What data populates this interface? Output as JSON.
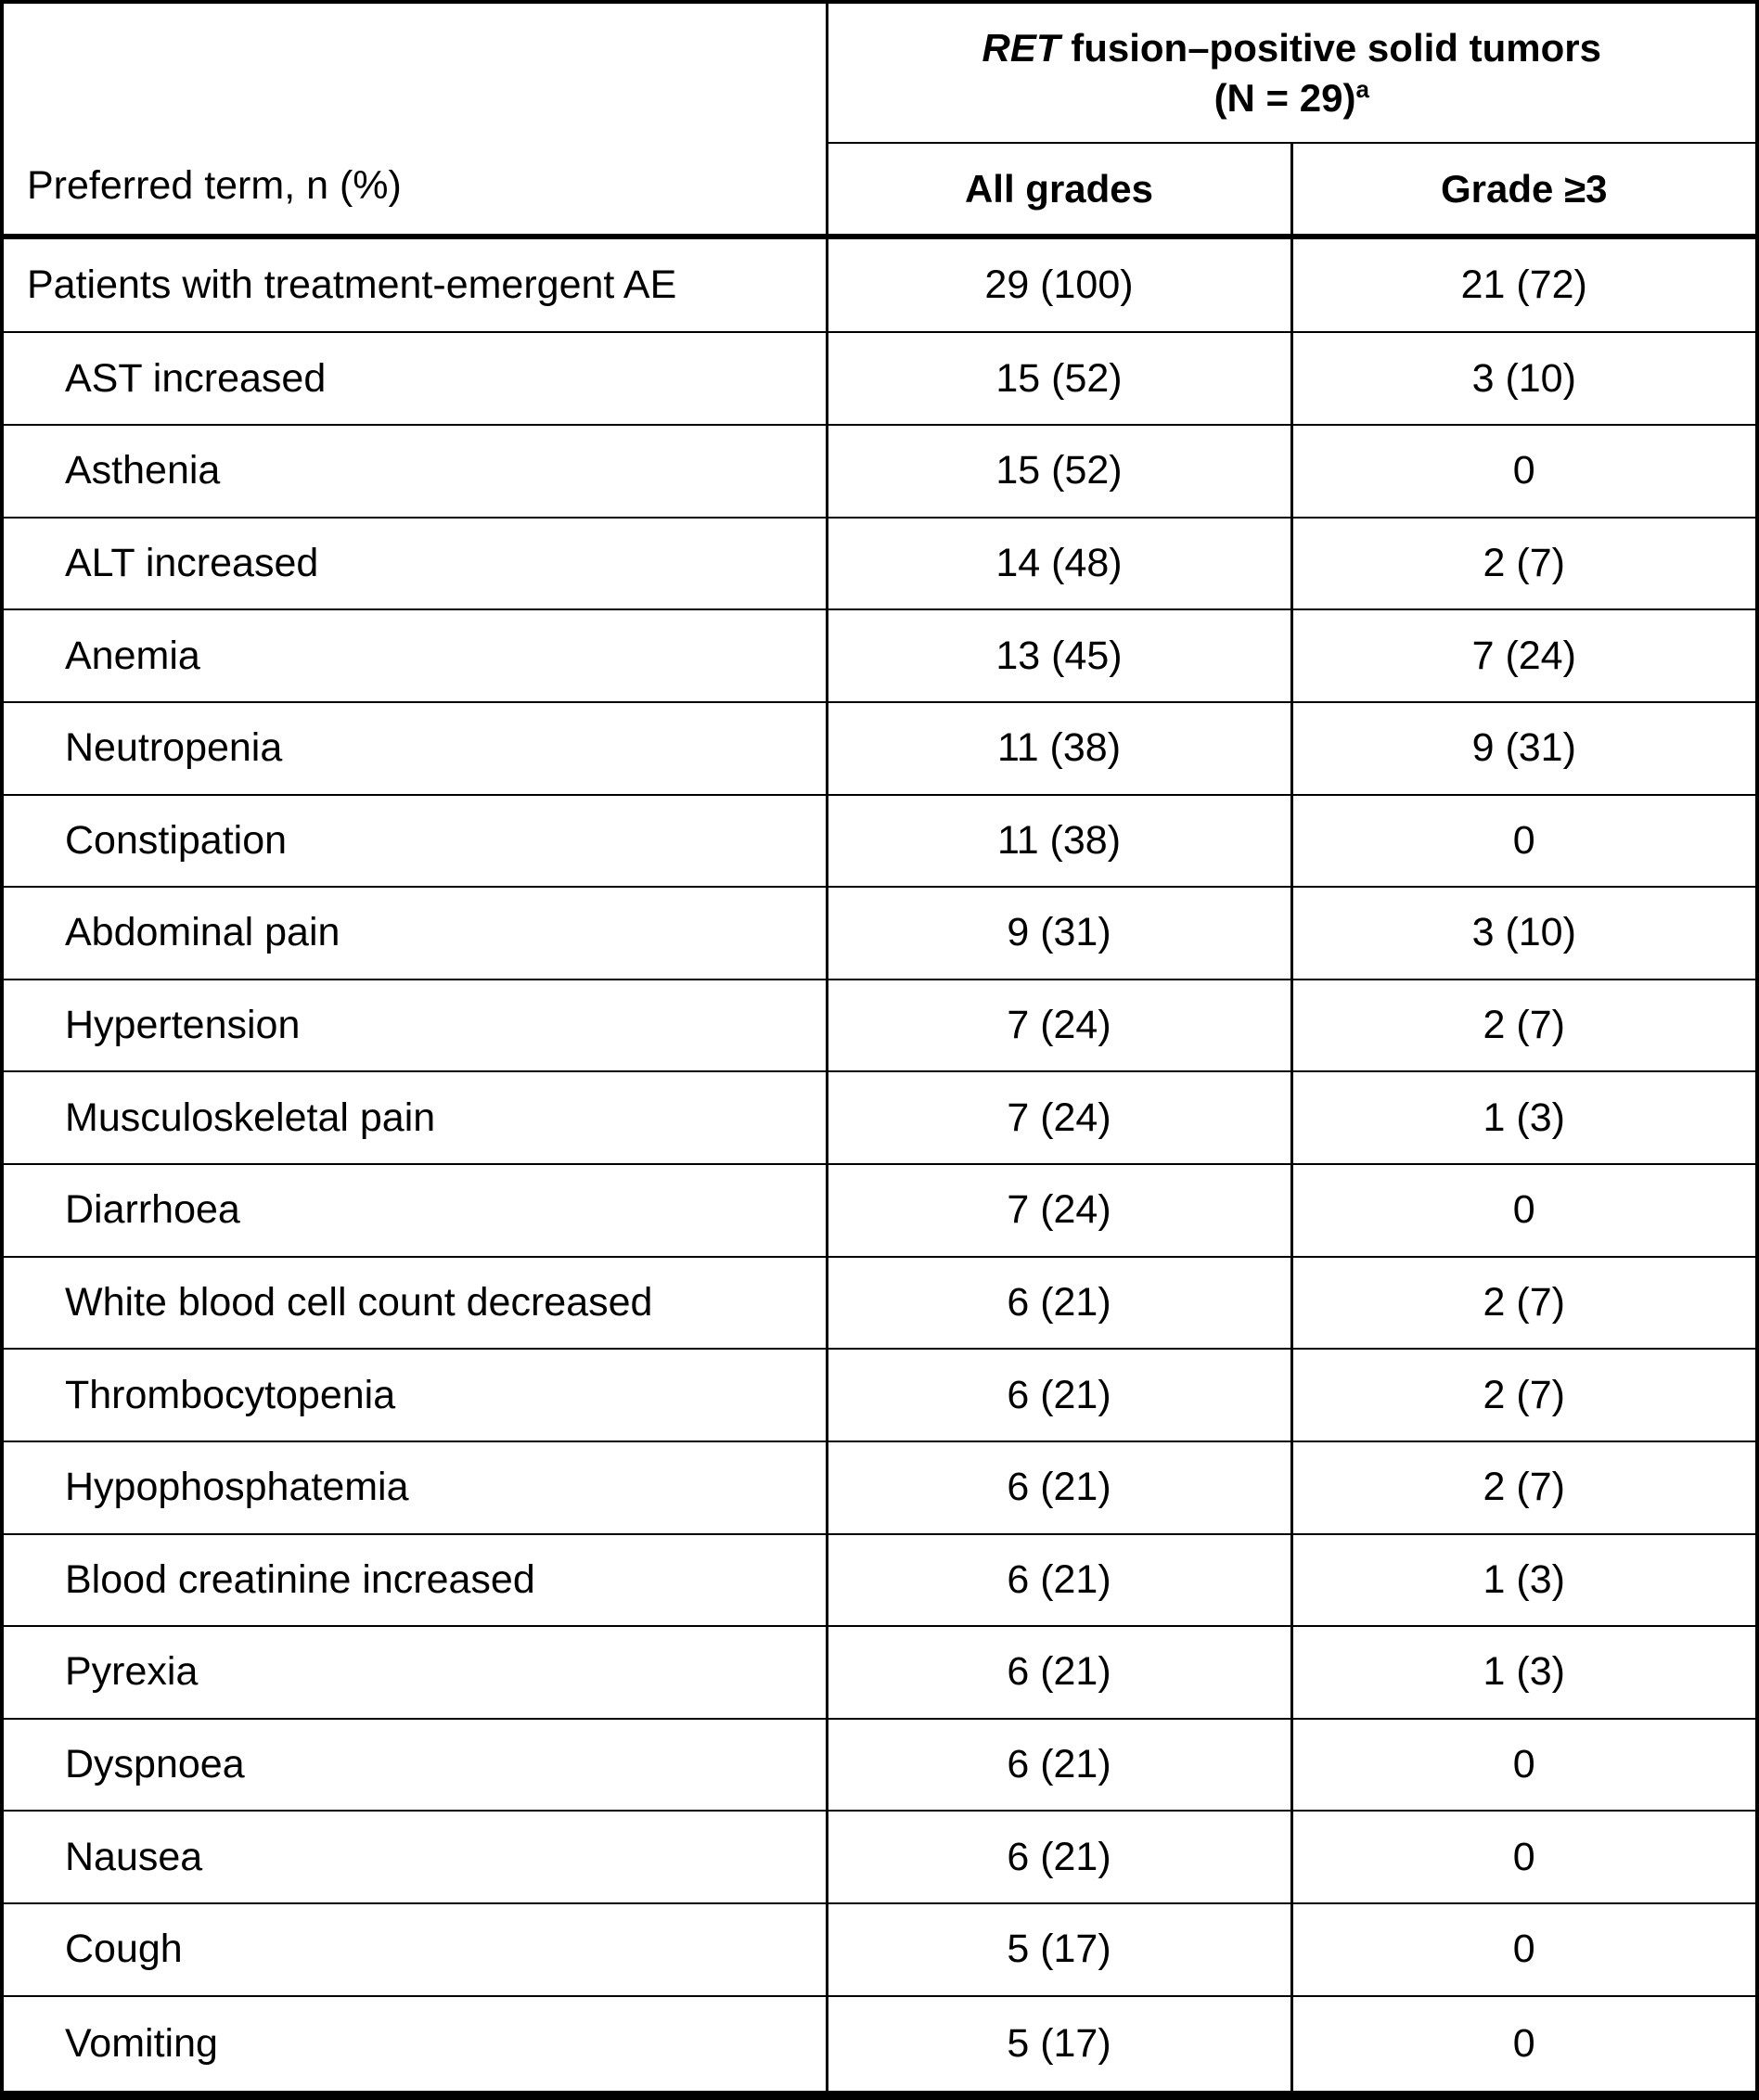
{
  "table": {
    "header": {
      "col1_label": "Preferred term, n (%)",
      "span_title_gene": "RET",
      "span_title_rest": " fusion–positive solid tumors",
      "span_title_line2": "(N = 29)",
      "span_title_superscript": "a",
      "col2_label": "All grades",
      "col3_label": "Grade ≥3"
    },
    "rows": [
      {
        "term": "Patients with treatment-emergent AE",
        "all_grades": "29 (100)",
        "grade_ge3": "21 (72)"
      },
      {
        "term": "AST increased",
        "all_grades": "15 (52)",
        "grade_ge3": "3 (10)"
      },
      {
        "term": "Asthenia",
        "all_grades": "15 (52)",
        "grade_ge3": "0"
      },
      {
        "term": "ALT increased",
        "all_grades": "14 (48)",
        "grade_ge3": "2 (7)"
      },
      {
        "term": "Anemia",
        "all_grades": "13 (45)",
        "grade_ge3": "7 (24)"
      },
      {
        "term": "Neutropenia",
        "all_grades": "11 (38)",
        "grade_ge3": "9 (31)"
      },
      {
        "term": "Constipation",
        "all_grades": "11 (38)",
        "grade_ge3": "0"
      },
      {
        "term": "Abdominal pain",
        "all_grades": "9 (31)",
        "grade_ge3": "3 (10)"
      },
      {
        "term": "Hypertension",
        "all_grades": "7 (24)",
        "grade_ge3": "2 (7)"
      },
      {
        "term": "Musculoskeletal pain",
        "all_grades": "7 (24)",
        "grade_ge3": "1 (3)"
      },
      {
        "term": "Diarrhoea",
        "all_grades": "7 (24)",
        "grade_ge3": "0"
      },
      {
        "term": "White blood cell count decreased",
        "all_grades": "6 (21)",
        "grade_ge3": "2 (7)"
      },
      {
        "term": "Thrombocytopenia",
        "all_grades": "6 (21)",
        "grade_ge3": "2 (7)"
      },
      {
        "term": "Hypophosphatemia",
        "all_grades": "6 (21)",
        "grade_ge3": "2 (7)"
      },
      {
        "term": "Blood creatinine increased",
        "all_grades": "6 (21)",
        "grade_ge3": "1 (3)"
      },
      {
        "term": "Pyrexia",
        "all_grades": "6 (21)",
        "grade_ge3": "1 (3)"
      },
      {
        "term": "Dyspnoea",
        "all_grades": "6 (21)",
        "grade_ge3": "0"
      },
      {
        "term": "Nausea",
        "all_grades": "6 (21)",
        "grade_ge3": "0"
      },
      {
        "term": "Cough",
        "all_grades": "5 (17)",
        "grade_ge3": "0"
      },
      {
        "term": "Vomiting",
        "all_grades": "5 (17)",
        "grade_ge3": "0"
      }
    ]
  },
  "colors": {
    "text": "#000000",
    "border": "#000000",
    "background": "#ffffff"
  }
}
